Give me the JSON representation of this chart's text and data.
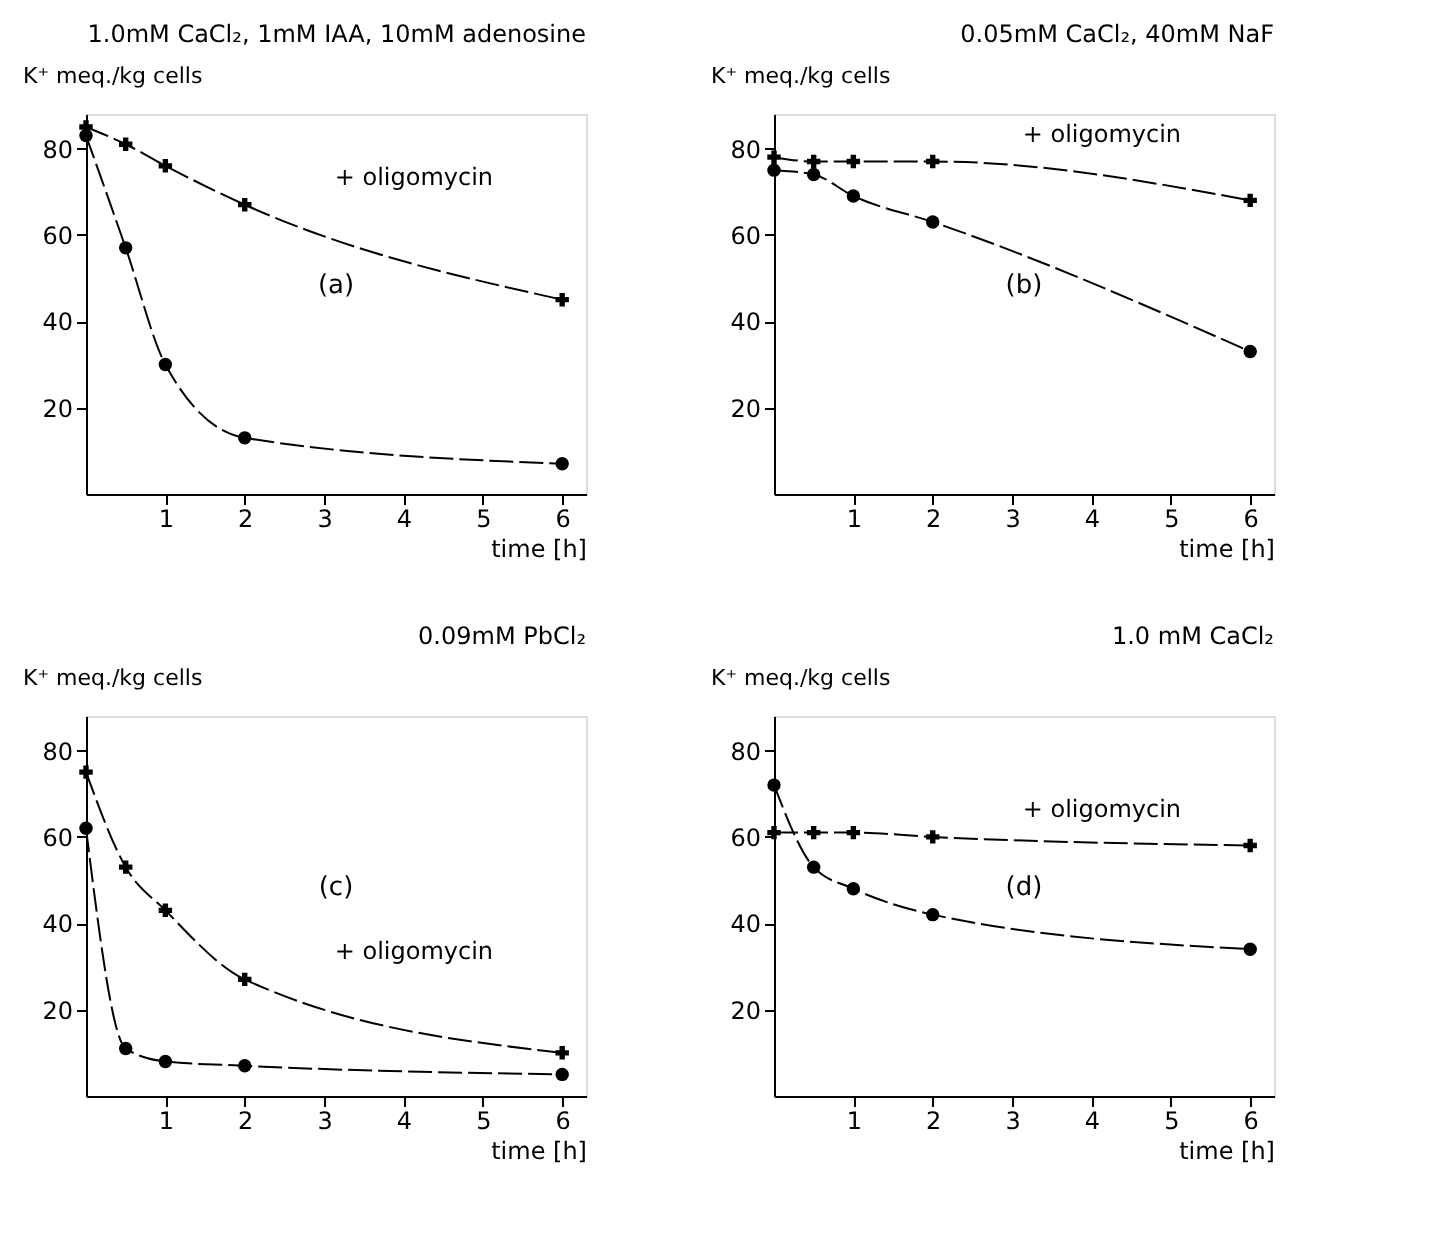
{
  "chart_data": [
    {
      "type": "line",
      "title": "1.0mM CaCl₂, 1mM IAA, 10mM adenosine",
      "xlabel": "time [h]",
      "ylabel": "K⁺ meq./kg cells",
      "annotations": [
        "(a)"
      ],
      "xlim": [
        0,
        6.3
      ],
      "ylim": [
        0,
        88
      ],
      "xticks": [
        1,
        2,
        3,
        4,
        5,
        6
      ],
      "yticks": [
        20,
        40,
        60,
        80
      ],
      "grid": false,
      "series": [
        {
          "name": "+ oligomycin",
          "color": "#000000",
          "marker": "cross",
          "line_style": "dashed",
          "x": [
            0,
            0.5,
            1,
            2,
            6
          ],
          "values": [
            85,
            81,
            76,
            67,
            45
          ]
        },
        {
          "color": "#000000",
          "marker": "circle",
          "line_style": "dashed",
          "x": [
            0,
            0.5,
            1,
            2,
            6
          ],
          "values": [
            83,
            57,
            30,
            13,
            7
          ]
        }
      ]
    },
    {
      "type": "line",
      "title": "0.05mM CaCl₂, 40mM NaF",
      "xlabel": "time [h]",
      "ylabel": "K⁺ meq./kg cells",
      "annotations": [
        "(b)"
      ],
      "xlim": [
        0,
        6.3
      ],
      "ylim": [
        0,
        88
      ],
      "xticks": [
        1,
        2,
        3,
        4,
        5,
        6
      ],
      "yticks": [
        20,
        40,
        60,
        80
      ],
      "grid": false,
      "series": [
        {
          "name": "+ oligomycin",
          "color": "#000000",
          "marker": "cross",
          "line_style": "dashed",
          "x": [
            0,
            0.5,
            1,
            2,
            6
          ],
          "values": [
            78,
            77,
            77,
            77,
            68
          ]
        },
        {
          "color": "#000000",
          "marker": "circle",
          "line_style": "dashed",
          "x": [
            0,
            0.5,
            1,
            2,
            6
          ],
          "values": [
            75,
            74,
            69,
            63,
            33
          ]
        }
      ]
    },
    {
      "type": "line",
      "title": "0.09mM PbCl₂",
      "xlabel": "time [h]",
      "ylabel": "K⁺ meq./kg cells",
      "annotations": [
        "(c)"
      ],
      "xlim": [
        0,
        6.3
      ],
      "ylim": [
        0,
        88
      ],
      "xticks": [
        1,
        2,
        3,
        4,
        5,
        6
      ],
      "yticks": [
        20,
        40,
        60,
        80
      ],
      "grid": false,
      "series": [
        {
          "name": "+ oligomycin",
          "color": "#000000",
          "marker": "cross",
          "line_style": "dashed",
          "x": [
            0,
            0.5,
            1,
            2,
            6
          ],
          "values": [
            75,
            53,
            43,
            27,
            10
          ]
        },
        {
          "color": "#000000",
          "marker": "circle",
          "line_style": "dashed",
          "x": [
            0,
            0.5,
            1,
            2,
            6
          ],
          "values": [
            62,
            11,
            8,
            7,
            5
          ]
        }
      ]
    },
    {
      "type": "line",
      "title": "1.0 mM CaCl₂",
      "xlabel": "time [h]",
      "ylabel": "K⁺ meq./kg cells",
      "annotations": [
        "(d)"
      ],
      "xlim": [
        0,
        6.3
      ],
      "ylim": [
        0,
        88
      ],
      "xticks": [
        1,
        2,
        3,
        4,
        5,
        6
      ],
      "yticks": [
        20,
        40,
        60,
        80
      ],
      "grid": false,
      "series": [
        {
          "name": "+ oligomycin",
          "color": "#000000",
          "marker": "cross",
          "line_style": "dashed",
          "x": [
            0,
            0.5,
            1,
            2,
            6
          ],
          "values": [
            61,
            61,
            61,
            60,
            58
          ]
        },
        {
          "color": "#000000",
          "marker": "circle",
          "line_style": "dashed",
          "x": [
            0,
            0.5,
            1,
            2,
            6
          ],
          "values": [
            72,
            53,
            48,
            42,
            34
          ]
        }
      ]
    }
  ]
}
